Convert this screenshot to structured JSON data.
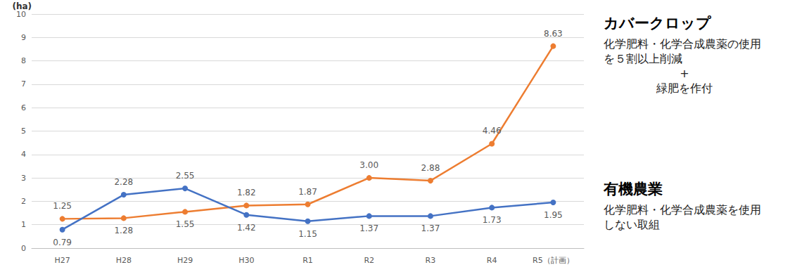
{
  "chart_data": {
    "type": "line",
    "y_label": "(ha)",
    "categories": [
      "H27",
      "H28",
      "H29",
      "H30",
      "R1",
      "R2",
      "R3",
      "R4",
      "R5（計画）"
    ],
    "ylim": [
      0,
      10
    ],
    "yticks": [
      0,
      1,
      2,
      3,
      4,
      5,
      6,
      7,
      8,
      9,
      10
    ],
    "grid": true,
    "data_labels": true,
    "marker": "circle",
    "series": [
      {
        "name": "カバークロップ",
        "color": "#ED7D31",
        "values": [
          1.25,
          1.28,
          1.55,
          1.82,
          1.87,
          3.0,
          2.88,
          4.46,
          8.63
        ],
        "value_labels": [
          "1.25",
          "1.28",
          "1.55",
          "1.82",
          "1.87",
          "3.00",
          "2.88",
          "4.46",
          "8.63"
        ],
        "description": [
          "化学肥料・化学合成農薬の使用を５割以上削減",
          "+",
          "緑肥を作付"
        ]
      },
      {
        "name": "有機農業",
        "color": "#4472C4",
        "values": [
          0.79,
          2.28,
          2.55,
          1.42,
          1.15,
          1.37,
          1.37,
          1.73,
          1.95
        ],
        "description": [
          "化学肥料・化学合成農薬を使用しない取組"
        ]
      }
    ]
  }
}
